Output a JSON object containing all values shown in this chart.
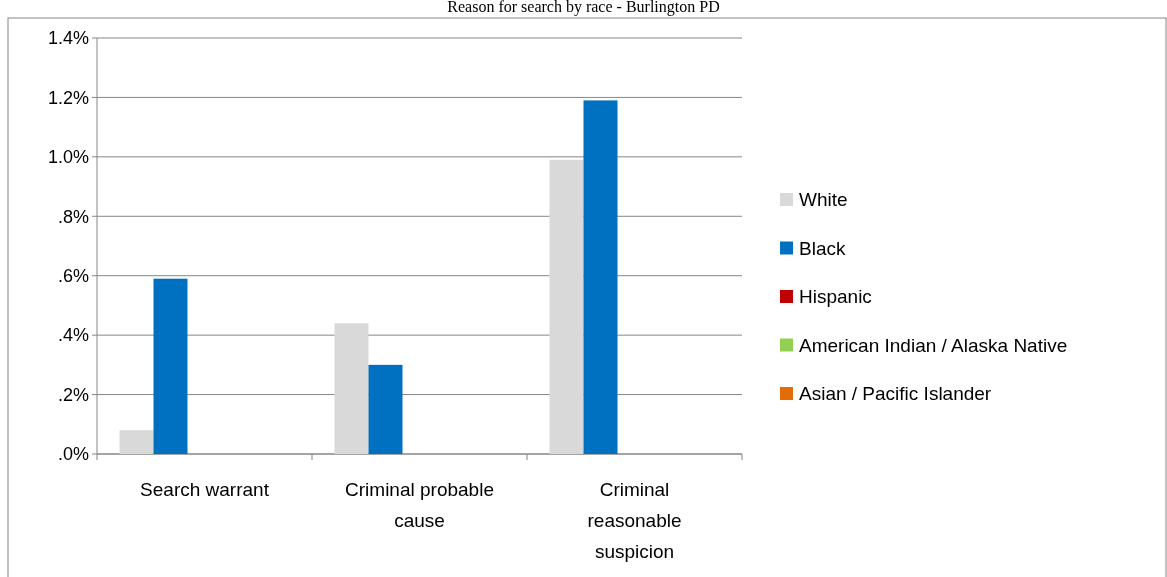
{
  "chart_data": {
    "type": "bar",
    "title": "Reason for search by race - Burlington PD",
    "categories": [
      "Search warrant",
      "Criminal probable cause",
      "Criminal reasonable suspicion"
    ],
    "series": [
      {
        "name": "White",
        "color": "#d9d9d9",
        "values": [
          0.08,
          0.44,
          0.99
        ]
      },
      {
        "name": "Black",
        "color": "#0070c0",
        "values": [
          0.59,
          0.3,
          1.19
        ]
      },
      {
        "name": "Hispanic",
        "color": "#c00000",
        "values": [
          0,
          0,
          0
        ]
      },
      {
        "name": "American Indian / Alaska Native",
        "color": "#92d050",
        "values": [
          0,
          0,
          0
        ]
      },
      {
        "name": "Asian / Pacific Islander",
        "color": "#e36c09",
        "values": [
          0,
          0,
          0
        ]
      }
    ],
    "ylim": [
      0,
      1.4
    ],
    "yticks": [
      {
        "value": 0,
        "label": ".0%"
      },
      {
        "value": 0.2,
        "label": ".2%"
      },
      {
        "value": 0.4,
        "label": ".4%"
      },
      {
        "value": 0.6,
        "label": ".6%"
      },
      {
        "value": 0.8,
        "label": ".8%"
      },
      {
        "value": 1.0,
        "label": "1.0%"
      },
      {
        "value": 1.2,
        "label": "1.2%"
      },
      {
        "value": 1.4,
        "label": "1.4%"
      }
    ],
    "grid": "y",
    "legend": "right"
  }
}
